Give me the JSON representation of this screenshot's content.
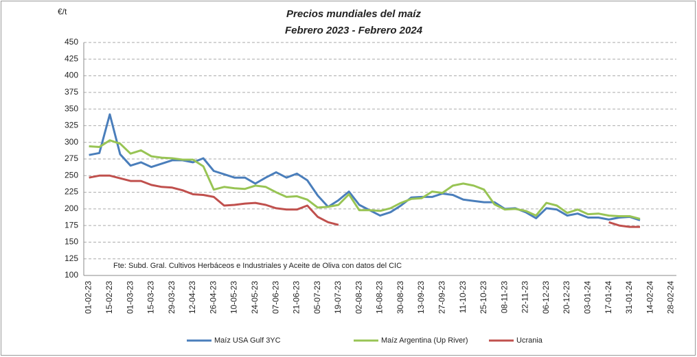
{
  "chart_data": {
    "type": "line",
    "title": "Precios mundiales del maíz",
    "subtitle": "Febrero 2023 - Febrero 2024",
    "y_label": "€/t",
    "annotation": "Fte: Subd. Gral. Cultivos Herbáceos e Industriales y Aceite de Oliva con datos del CIC",
    "categories": [
      "01-02-23",
      null,
      "15-02-23",
      null,
      "01-03-23",
      null,
      "15-03-23",
      null,
      "29-03-23",
      null,
      "12-04-23",
      null,
      "26-04-23",
      null,
      "10-05-23",
      null,
      "24-05-23",
      null,
      "07-06-23",
      null,
      "21-06-23",
      null,
      "05-07-23",
      null,
      "19-07-23",
      null,
      "02-08-23",
      null,
      "16-08-23",
      null,
      "30-08-23",
      null,
      "13-09-23",
      null,
      "27-09-23",
      null,
      "11-10-23",
      null,
      "25-10-23",
      null,
      "08-11-23",
      null,
      "22-11-23",
      null,
      "06-12-23",
      null,
      "20-12-23",
      null,
      "03-01-24",
      null,
      "17-01-24",
      null,
      "31-01-24",
      null,
      "14-02-24",
      null,
      "28-02-24"
    ],
    "series": [
      {
        "name": "Maíz USA Gulf 3YC",
        "color": "#4a7ebb",
        "values": [
          281,
          284,
          342,
          282,
          265,
          270,
          263,
          268,
          273,
          273,
          270,
          276,
          257,
          252,
          247,
          247,
          238,
          247,
          255,
          247,
          253,
          243,
          220,
          203,
          213,
          226,
          206,
          198,
          190,
          195,
          205,
          217,
          218,
          218,
          223,
          221,
          214,
          212,
          210,
          210,
          200,
          201,
          195,
          186,
          201,
          199,
          190,
          193,
          187,
          187,
          184,
          187,
          188,
          183,
          null,
          null,
          null
        ]
      },
      {
        "name": "Maíz Argentina (Up River)",
        "color": "#98c454",
        "values": [
          294,
          293,
          303,
          298,
          283,
          288,
          279,
          277,
          276,
          274,
          274,
          264,
          229,
          233,
          231,
          230,
          235,
          233,
          225,
          218,
          219,
          214,
          202,
          203,
          206,
          222,
          198,
          198,
          197,
          201,
          209,
          215,
          216,
          226,
          224,
          235,
          238,
          235,
          229,
          207,
          199,
          200,
          197,
          190,
          209,
          205,
          194,
          199,
          192,
          193,
          190,
          189,
          189,
          185,
          null,
          null,
          null
        ]
      },
      {
        "name": "Ucrania",
        "color": "#c0504d",
        "values": [
          247,
          250,
          250,
          246,
          242,
          242,
          236,
          233,
          232,
          228,
          222,
          221,
          218,
          205,
          206,
          208,
          209,
          206,
          201,
          199,
          199,
          205,
          188,
          180,
          176,
          null,
          null,
          null,
          null,
          null,
          null,
          null,
          null,
          null,
          null,
          null,
          null,
          null,
          null,
          null,
          null,
          null,
          null,
          null,
          null,
          null,
          null,
          null,
          null,
          null,
          180,
          175,
          173,
          173,
          null,
          null,
          null
        ]
      }
    ],
    "ylim": [
      100,
      450
    ],
    "yticks": [
      100,
      125,
      150,
      175,
      200,
      225,
      250,
      275,
      300,
      325,
      350,
      375,
      400,
      425,
      450
    ],
    "grid": true,
    "legend": "bottom"
  }
}
